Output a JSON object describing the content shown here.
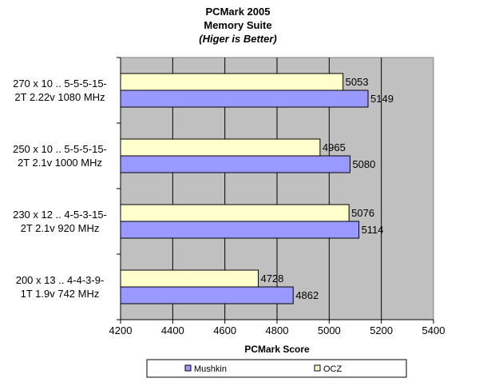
{
  "chart_data": {
    "type": "bar",
    "orientation": "horizontal",
    "title": "PCMark 2005",
    "subtitle": "Memory Suite",
    "note": "(Higer is Better)",
    "xlabel": "PCMark Score",
    "ylabel": "",
    "xlim": [
      4200,
      5400
    ],
    "xticks": [
      4200,
      4400,
      4600,
      4800,
      5000,
      5200,
      5400
    ],
    "grid": true,
    "legend_position": "bottom",
    "categories": [
      {
        "line1": "270 x 10 .. 5-5-5-15-",
        "line2": "2T  2.22v  1080 MHz"
      },
      {
        "line1": "250 x 10 .. 5-5-5-15-",
        "line2": "2T  2.1v  1000 MHz"
      },
      {
        "line1": "230 x 12 .. 4-5-3-15-",
        "line2": "2T  2.1v  920 MHz"
      },
      {
        "line1": "200 x 13 .. 4-4-3-9-",
        "line2": "1T  1.9v  742 MHz"
      }
    ],
    "series": [
      {
        "name": "OCZ",
        "color": "#ffffcc",
        "values": [
          5053,
          4965,
          5076,
          4728
        ]
      },
      {
        "name": "Mushkin",
        "color": "#9999ff",
        "values": [
          5149,
          5080,
          5114,
          4862
        ]
      }
    ],
    "legend_order": [
      "Mushkin",
      "OCZ"
    ],
    "plot_background": "#c0c0c0"
  }
}
